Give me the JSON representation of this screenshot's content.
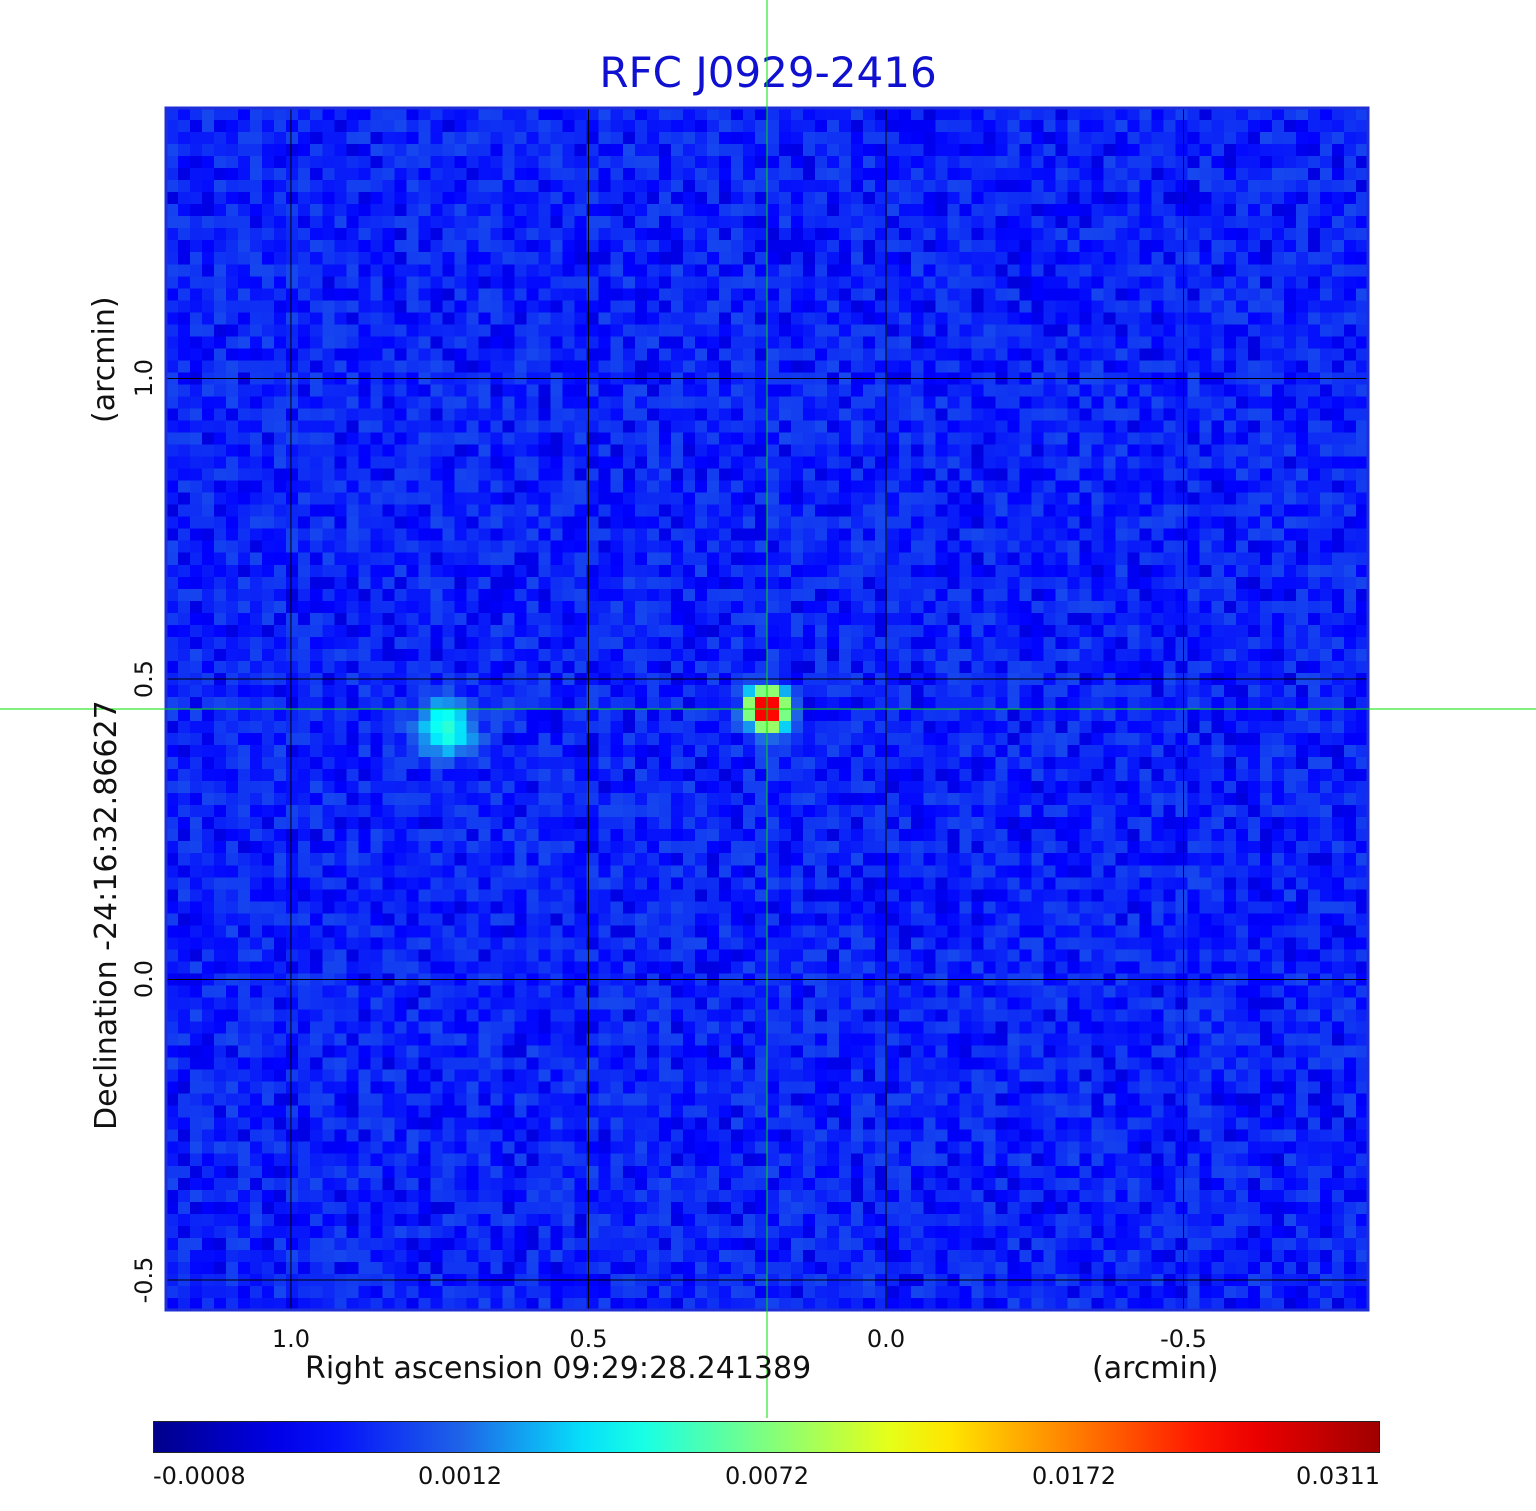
{
  "title": "RFC J0929-2416",
  "x_axis": {
    "label": "Right ascension  09:29:28.241389",
    "unit": "(arcmin)",
    "ticks": [
      "1.0",
      "0.5",
      "0.0",
      "-0.5"
    ]
  },
  "y_axis": {
    "label": "Declination  -24:16:32.86627",
    "unit": "(arcmin)",
    "ticks": [
      "1.0",
      "0.5",
      "0.0",
      "-0.5"
    ]
  },
  "colorbar": {
    "ticks": [
      "-0.0008",
      "0.0012",
      "0.0072",
      "0.0172",
      "0.0311"
    ],
    "colors": [
      "#00008b",
      "#0000ff",
      "#1f63e8",
      "#00ffff",
      "#7fff7f",
      "#ffff00",
      "#ff7f00",
      "#ff0000",
      "#a00000"
    ]
  },
  "colors": {
    "title": "#1010d0",
    "frame": "#1f2fd8",
    "grid": "#000000",
    "crosshair": "#00e000",
    "background_map": "#1f63e8"
  },
  "chart_data": {
    "type": "heatmap",
    "title": "RFC J0929-2416",
    "xlabel": "Right ascension  09:29:28.241389 (arcmin)",
    "ylabel": "Declination  -24:16:32.86627 (arcmin)",
    "x_range_arcmin": [
      1.21,
      -0.81
    ],
    "y_range_arcmin": [
      -0.55,
      1.45
    ],
    "x_ticks": [
      1.0,
      0.5,
      0.0,
      -0.5
    ],
    "y_ticks": [
      1.0,
      0.5,
      0.0,
      -0.5
    ],
    "grid": true,
    "crosshair_arcmin": {
      "x": 0.2,
      "y": 0.45
    },
    "colorbar_range": [
      -0.0008,
      0.0311
    ],
    "sources": [
      {
        "name": "peak",
        "x_arcmin": 0.2,
        "y_arcmin": 0.45,
        "value": 0.0311
      },
      {
        "name": "secondary",
        "x_arcmin": 0.74,
        "y_arcmin": 0.42,
        "value": 0.004
      }
    ],
    "background_level": -0.0002
  }
}
